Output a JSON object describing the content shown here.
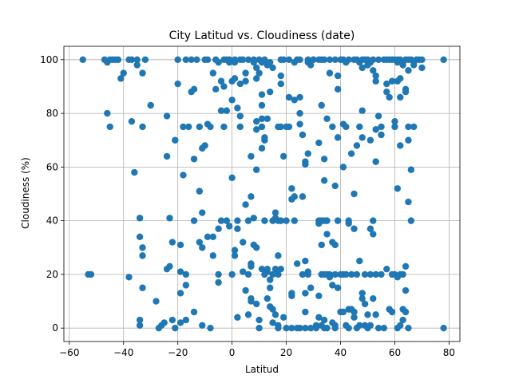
{
  "chart_data": {
    "type": "scatter",
    "title": "City Latitud vs. Cloudiness (date)",
    "xlabel": "Latitud",
    "ylabel": "Cloudiness (%)",
    "xlim": [
      -62,
      84
    ],
    "ylim": [
      -5,
      105
    ],
    "xticks": [
      -60,
      -40,
      -20,
      0,
      20,
      40,
      60,
      80
    ],
    "yticks": [
      0,
      20,
      40,
      60,
      80,
      100
    ],
    "grid": true,
    "legend": "none",
    "marker_color": "#1f77b4",
    "points": [
      [
        -55,
        100
      ],
      [
        -53,
        20
      ],
      [
        -52,
        20
      ],
      [
        -47,
        100
      ],
      [
        -46,
        99
      ],
      [
        -46,
        80
      ],
      [
        -45,
        100
      ],
      [
        -45,
        75
      ],
      [
        -44,
        100
      ],
      [
        -43,
        100
      ],
      [
        -42,
        100
      ],
      [
        -41,
        93
      ],
      [
        -40,
        95
      ],
      [
        -38,
        100
      ],
      [
        -38,
        19
      ],
      [
        -37,
        77
      ],
      [
        -37,
        100
      ],
      [
        -36,
        58
      ],
      [
        -35,
        100
      ],
      [
        -35,
        98
      ],
      [
        -34,
        34
      ],
      [
        -34,
        41
      ],
      [
        -34,
        3
      ],
      [
        -34,
        1
      ],
      [
        -33,
        15
      ],
      [
        -33,
        27
      ],
      [
        -33,
        30
      ],
      [
        -33,
        95
      ],
      [
        -33,
        75
      ],
      [
        -32,
        100
      ],
      [
        -30,
        83
      ],
      [
        -28,
        10
      ],
      [
        -27,
        0
      ],
      [
        -26,
        1
      ],
      [
        -25,
        2
      ],
      [
        -24,
        79
      ],
      [
        -24,
        64
      ],
      [
        -24,
        22
      ],
      [
        -23,
        23
      ],
      [
        -23,
        41
      ],
      [
        -22,
        32
      ],
      [
        -22,
        3
      ],
      [
        -21,
        0
      ],
      [
        -21,
        70
      ],
      [
        -20,
        91
      ],
      [
        -20,
        100
      ],
      [
        -19,
        13
      ],
      [
        -19,
        2
      ],
      [
        -19,
        21
      ],
      [
        -19,
        31
      ],
      [
        -18,
        57
      ],
      [
        -18,
        75
      ],
      [
        -17,
        20
      ],
      [
        -17,
        16
      ],
      [
        -17,
        3
      ],
      [
        -17,
        100
      ],
      [
        -16,
        75
      ],
      [
        -15,
        100
      ],
      [
        -15,
        88
      ],
      [
        -14,
        89
      ],
      [
        -14,
        63
      ],
      [
        -14,
        40
      ],
      [
        -14,
        6
      ],
      [
        -13,
        100
      ],
      [
        -12,
        51
      ],
      [
        -12,
        75
      ],
      [
        -12,
        32
      ],
      [
        -11,
        30
      ],
      [
        -11,
        67
      ],
      [
        -11,
        43
      ],
      [
        -11,
        1
      ],
      [
        -10,
        100
      ],
      [
        -10,
        68
      ],
      [
        -9,
        34
      ],
      [
        -9,
        100
      ],
      [
        -9,
        76
      ],
      [
        -8,
        75
      ],
      [
        -8,
        0
      ],
      [
        -7,
        27
      ],
      [
        -7,
        34
      ],
      [
        -7,
        95
      ],
      [
        -6,
        100
      ],
      [
        -6,
        89
      ],
      [
        -5,
        99
      ],
      [
        -5,
        37
      ],
      [
        -5,
        20
      ],
      [
        -5,
        17
      ],
      [
        -4,
        81
      ],
      [
        -4,
        92
      ],
      [
        -4,
        40
      ],
      [
        -3,
        100
      ],
      [
        -3,
        90
      ],
      [
        -3,
        75
      ],
      [
        -2,
        100
      ],
      [
        -2,
        81
      ],
      [
        -2,
        40
      ],
      [
        -1,
        100
      ],
      [
        -1,
        99
      ],
      [
        -1,
        38
      ],
      [
        0,
        92
      ],
      [
        0,
        85
      ],
      [
        0,
        56
      ],
      [
        0,
        20
      ],
      [
        1,
        100
      ],
      [
        1,
        93
      ],
      [
        1,
        99
      ],
      [
        1,
        29
      ],
      [
        1,
        27
      ],
      [
        2,
        82
      ],
      [
        2,
        40
      ],
      [
        2,
        37
      ],
      [
        2,
        4
      ],
      [
        3,
        91
      ],
      [
        3,
        79
      ],
      [
        3,
        100
      ],
      [
        3,
        75
      ],
      [
        4,
        100
      ],
      [
        4,
        32
      ],
      [
        4,
        21
      ],
      [
        5,
        14
      ],
      [
        5,
        46
      ],
      [
        5,
        92
      ],
      [
        5,
        95
      ],
      [
        6,
        100
      ],
      [
        6,
        40
      ],
      [
        6,
        20
      ],
      [
        6,
        5
      ],
      [
        7,
        64
      ],
      [
        7,
        11
      ],
      [
        7,
        24
      ],
      [
        7,
        23
      ],
      [
        7,
        49
      ],
      [
        7,
        10
      ],
      [
        8,
        99
      ],
      [
        8,
        100
      ],
      [
        8,
        41
      ],
      [
        8,
        31
      ],
      [
        9,
        59
      ],
      [
        9,
        77
      ],
      [
        9,
        74
      ],
      [
        9,
        97
      ],
      [
        9,
        93
      ],
      [
        9,
        30
      ],
      [
        9,
        9
      ],
      [
        10,
        100
      ],
      [
        10,
        95
      ],
      [
        10,
        0
      ],
      [
        10,
        3
      ],
      [
        11,
        99
      ],
      [
        11,
        78
      ],
      [
        11,
        75
      ],
      [
        11,
        83
      ],
      [
        11,
        87
      ],
      [
        11,
        67
      ],
      [
        11,
        22
      ],
      [
        12,
        100
      ],
      [
        12,
        70
      ],
      [
        12,
        71
      ],
      [
        12,
        40
      ],
      [
        12,
        20
      ],
      [
        13,
        98
      ],
      [
        13,
        78
      ],
      [
        13,
        21
      ],
      [
        13,
        22
      ],
      [
        13,
        11
      ],
      [
        14,
        99
      ],
      [
        14,
        88
      ],
      [
        14,
        18
      ],
      [
        14,
        15
      ],
      [
        14,
        8
      ],
      [
        15,
        97
      ],
      [
        15,
        40
      ],
      [
        15,
        20
      ],
      [
        15,
        7
      ],
      [
        15,
        2
      ],
      [
        16,
        43
      ],
      [
        16,
        41
      ],
      [
        16,
        22
      ],
      [
        16,
        5
      ],
      [
        17,
        75
      ],
      [
        17,
        40
      ],
      [
        17,
        27
      ],
      [
        17,
        20
      ],
      [
        17,
        1
      ],
      [
        17,
        0
      ],
      [
        18,
        100
      ],
      [
        18,
        94
      ],
      [
        18,
        91
      ],
      [
        18,
        75
      ],
      [
        18,
        40
      ],
      [
        18,
        22
      ],
      [
        19,
        100
      ],
      [
        19,
        64
      ],
      [
        19,
        4
      ],
      [
        20,
        75
      ],
      [
        20,
        40
      ],
      [
        20,
        0
      ],
      [
        21,
        86
      ],
      [
        21,
        100
      ],
      [
        21,
        75
      ],
      [
        22,
        48
      ],
      [
        22,
        52
      ],
      [
        22,
        12
      ],
      [
        22,
        13
      ],
      [
        22,
        0
      ],
      [
        23,
        99
      ],
      [
        23,
        85
      ],
      [
        23,
        40
      ],
      [
        23,
        49
      ],
      [
        24,
        100
      ],
      [
        24,
        24
      ],
      [
        24,
        0
      ],
      [
        25,
        100
      ],
      [
        25,
        80
      ],
      [
        25,
        86
      ],
      [
        25,
        76
      ],
      [
        25,
        0
      ],
      [
        26,
        20
      ],
      [
        26,
        72
      ],
      [
        26,
        49
      ],
      [
        27,
        61
      ],
      [
        27,
        62
      ],
      [
        27,
        13
      ],
      [
        27,
        6
      ],
      [
        27,
        25
      ],
      [
        27,
        0
      ],
      [
        28,
        100
      ],
      [
        28,
        65
      ],
      [
        28,
        99
      ],
      [
        28,
        20
      ],
      [
        28,
        21
      ],
      [
        29,
        98
      ],
      [
        29,
        15
      ],
      [
        29,
        0
      ],
      [
        30,
        100
      ],
      [
        30,
        100
      ],
      [
        31,
        1
      ],
      [
        31,
        0
      ],
      [
        32,
        100
      ],
      [
        32,
        69
      ],
      [
        32,
        40
      ],
      [
        32,
        39
      ],
      [
        32,
        4
      ],
      [
        32,
        12
      ],
      [
        33,
        100
      ],
      [
        33,
        83
      ],
      [
        33,
        40
      ],
      [
        33,
        31
      ],
      [
        33,
        20
      ],
      [
        33,
        1
      ],
      [
        34,
        100
      ],
      [
        34,
        63
      ],
      [
        34,
        55
      ],
      [
        34,
        40
      ],
      [
        34,
        20
      ],
      [
        34,
        3
      ],
      [
        34,
        0
      ],
      [
        35,
        78
      ],
      [
        35,
        40
      ],
      [
        35,
        20
      ],
      [
        35,
        35
      ],
      [
        35,
        0
      ],
      [
        36,
        100
      ],
      [
        36,
        95
      ],
      [
        36,
        20
      ],
      [
        36,
        19
      ],
      [
        37,
        75
      ],
      [
        37,
        32
      ],
      [
        37,
        16
      ],
      [
        37,
        2
      ],
      [
        38,
        100
      ],
      [
        38,
        31
      ],
      [
        38,
        20
      ],
      [
        38,
        53
      ],
      [
        38,
        1
      ],
      [
        38,
        0
      ],
      [
        39,
        71
      ],
      [
        39,
        94
      ],
      [
        39,
        89
      ],
      [
        39,
        40
      ],
      [
        39,
        15
      ],
      [
        40,
        100
      ],
      [
        40,
        20
      ],
      [
        40,
        6
      ],
      [
        41,
        100
      ],
      [
        41,
        76
      ],
      [
        41,
        60
      ],
      [
        41,
        20
      ],
      [
        41,
        6
      ],
      [
        42,
        99
      ],
      [
        42,
        75
      ],
      [
        42,
        20
      ],
      [
        42,
        1
      ],
      [
        43,
        100
      ],
      [
        43,
        40
      ],
      [
        43,
        39
      ],
      [
        43,
        7
      ],
      [
        43,
        0
      ],
      [
        44,
        65
      ],
      [
        44,
        20
      ],
      [
        44,
        7
      ],
      [
        45,
        100
      ],
      [
        45,
        50
      ],
      [
        45,
        37
      ],
      [
        45,
        6
      ],
      [
        45,
        4
      ],
      [
        46,
        100
      ],
      [
        46,
        68
      ],
      [
        46,
        20
      ],
      [
        46,
        0
      ],
      [
        47,
        99
      ],
      [
        47,
        75
      ],
      [
        47,
        25
      ],
      [
        47,
        1
      ],
      [
        48,
        100
      ],
      [
        48,
        97
      ],
      [
        48,
        81
      ],
      [
        48,
        71
      ],
      [
        48,
        13
      ],
      [
        48,
        11
      ],
      [
        49,
        100
      ],
      [
        49,
        20
      ],
      [
        49,
        9
      ],
      [
        49,
        1
      ],
      [
        50,
        100
      ],
      [
        50,
        98
      ],
      [
        50,
        5
      ],
      [
        50,
        0
      ],
      [
        51,
        99
      ],
      [
        51,
        70
      ],
      [
        51,
        37
      ],
      [
        51,
        20
      ],
      [
        51,
        1
      ],
      [
        52,
        100
      ],
      [
        52,
        96
      ],
      [
        52,
        40
      ],
      [
        52,
        35
      ],
      [
        52,
        11
      ],
      [
        53,
        94
      ],
      [
        53,
        92
      ],
      [
        53,
        74
      ],
      [
        53,
        62
      ],
      [
        53,
        20
      ],
      [
        53,
        5
      ],
      [
        54,
        100
      ],
      [
        54,
        79
      ],
      [
        54,
        0
      ],
      [
        55,
        75
      ],
      [
        55,
        72
      ],
      [
        55,
        20
      ],
      [
        56,
        100
      ],
      [
        56,
        0
      ],
      [
        57,
        100
      ],
      [
        57,
        91
      ],
      [
        57,
        88
      ],
      [
        57,
        22
      ],
      [
        58,
        100
      ],
      [
        58,
        86
      ],
      [
        58,
        7
      ],
      [
        59,
        100
      ],
      [
        59,
        92
      ],
      [
        59,
        20
      ],
      [
        59,
        6
      ],
      [
        60,
        100
      ],
      [
        60,
        77
      ],
      [
        60,
        75
      ],
      [
        60,
        20
      ],
      [
        61,
        100
      ],
      [
        61,
        99
      ],
      [
        61,
        92
      ],
      [
        61,
        19
      ],
      [
        61,
        52
      ],
      [
        61,
        0
      ],
      [
        62,
        100
      ],
      [
        62,
        93
      ],
      [
        62,
        86
      ],
      [
        62,
        68
      ],
      [
        62,
        20
      ],
      [
        62,
        1
      ],
      [
        63,
        98
      ],
      [
        63,
        99
      ],
      [
        63,
        20
      ],
      [
        63,
        7
      ],
      [
        63,
        3
      ],
      [
        64,
        100
      ],
      [
        64,
        88
      ],
      [
        64,
        89
      ],
      [
        64,
        23
      ],
      [
        64,
        14
      ],
      [
        64,
        6
      ],
      [
        65,
        100
      ],
      [
        65,
        96
      ],
      [
        65,
        75
      ],
      [
        65,
        70
      ],
      [
        65,
        47
      ],
      [
        65,
        0
      ],
      [
        66,
        100
      ],
      [
        66,
        59
      ],
      [
        66,
        40
      ],
      [
        67,
        99
      ],
      [
        67,
        98
      ],
      [
        67,
        75
      ],
      [
        68,
        100
      ],
      [
        69,
        100
      ],
      [
        70,
        97
      ],
      [
        70,
        100
      ],
      [
        78,
        100
      ],
      [
        78,
        0
      ]
    ]
  }
}
